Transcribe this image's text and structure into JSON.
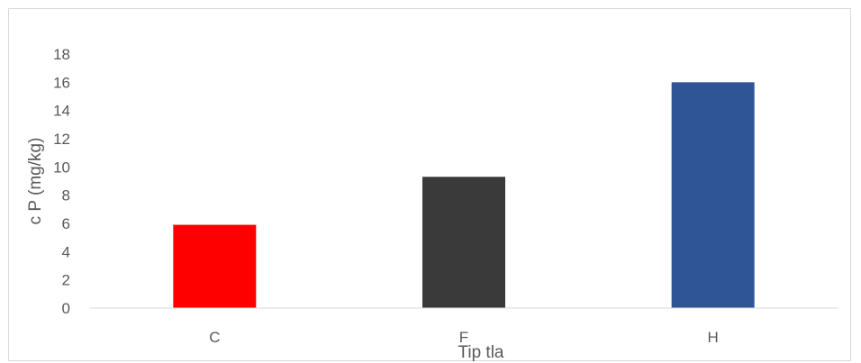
{
  "chart_data": {
    "type": "bar",
    "title": "",
    "xlabel": "Tip tla",
    "ylabel": "c P (mg/kg)",
    "categories": [
      "C",
      "F",
      "H"
    ],
    "values": [
      5.9,
      9.3,
      16.0
    ],
    "colors": [
      "#ff0000",
      "#3a3a3a",
      "#2f5597"
    ],
    "ylim": [
      0,
      18
    ],
    "yticks": [
      0,
      2,
      4,
      6,
      8,
      10,
      12,
      14,
      16,
      18
    ],
    "grid": false,
    "legend": "none"
  }
}
